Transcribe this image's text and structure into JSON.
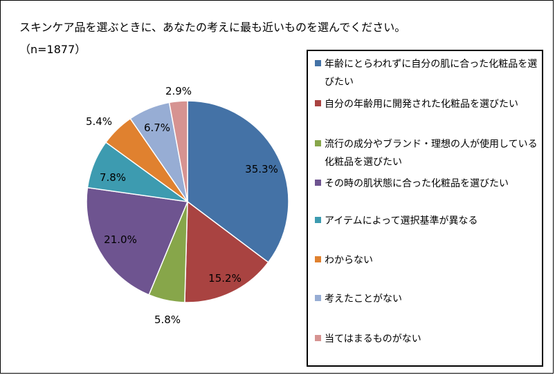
{
  "header": {
    "title": "スキンケア品を選ぶときに、あなたの考えに最も近いものを選んでください。",
    "subtitle": "（n=1877）"
  },
  "chart_data": {
    "type": "pie",
    "start_angle": "12 o'clock",
    "direction": "clockwise",
    "legend_placement": "right",
    "slices": [
      {
        "label": "年齢にとらわれずに自分の肌に合った化粧品を選びたい",
        "value": 35.3,
        "value_label": "35.3%",
        "color": "#4472A6"
      },
      {
        "label": "自分の年齢用に開発された化粧品を選びたい",
        "value": 15.2,
        "value_label": "15.2%",
        "color": "#A94341"
      },
      {
        "label": "流行の成分やブランド・理想の人が使用している化粧品を選びたい",
        "value": 5.8,
        "value_label": "5.8%",
        "color": "#87A64A"
      },
      {
        "label": "その時の肌状態に合った化粧品を選びたい",
        "value": 21.0,
        "value_label": "21.0%",
        "color": "#6E5490"
      },
      {
        "label": "アイテムによって選択基準が異なる",
        "value": 7.8,
        "value_label": "7.8%",
        "color": "#3D9BB0"
      },
      {
        "label": "わからない",
        "value": 5.4,
        "value_label": "5.4%",
        "color": "#E0812F"
      },
      {
        "label": "考えたことがない",
        "value": 6.7,
        "value_label": "6.7%",
        "color": "#97ADD4"
      },
      {
        "label": "当てはまるものがない",
        "value": 2.9,
        "value_label": "2.9%",
        "color": "#D69391"
      }
    ]
  }
}
